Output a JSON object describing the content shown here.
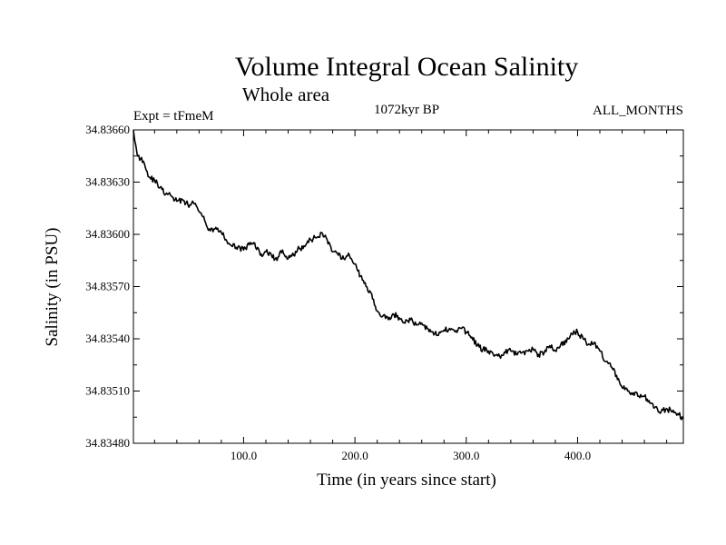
{
  "chart_data": {
    "type": "line",
    "title": "Volume Integral Ocean Salinity",
    "subtitle": "Whole area",
    "left_label": "Expt = tFmeM",
    "center_label": "1072kyr BP",
    "right_label": "ALL_MONTHS",
    "xlabel": "Time (in years since start)",
    "ylabel": "Salinity (in PSU)",
    "xlim": [
      1,
      495
    ],
    "ylim": [
      34.8348,
      34.8366
    ],
    "x_ticks": [
      100,
      200,
      300,
      400
    ],
    "x_tick_labels": [
      "100.0",
      "200.0",
      "300.0",
      "400.0"
    ],
    "y_ticks": [
      34.8348,
      34.8351,
      34.8354,
      34.8357,
      34.836,
      34.8363,
      34.8366
    ],
    "y_tick_labels": [
      "34.83480",
      "34.83510",
      "34.83540",
      "34.83570",
      "34.83600",
      "34.83630",
      "34.83660"
    ],
    "series": [
      {
        "name": "Salinity",
        "x": [
          1,
          5,
          10,
          15,
          20,
          25,
          30,
          35,
          40,
          45,
          50,
          55,
          60,
          65,
          70,
          75,
          80,
          85,
          90,
          95,
          100,
          105,
          110,
          115,
          120,
          125,
          130,
          135,
          140,
          145,
          150,
          155,
          160,
          165,
          170,
          175,
          180,
          185,
          190,
          195,
          200,
          205,
          210,
          215,
          220,
          225,
          230,
          235,
          240,
          245,
          250,
          255,
          260,
          265,
          270,
          275,
          280,
          285,
          290,
          295,
          300,
          305,
          310,
          315,
          320,
          325,
          330,
          335,
          340,
          345,
          350,
          355,
          360,
          365,
          370,
          375,
          380,
          385,
          390,
          395,
          400,
          405,
          410,
          415,
          420,
          425,
          430,
          435,
          440,
          445,
          450,
          455,
          460,
          465,
          470,
          475,
          480,
          485,
          490,
          495
        ],
        "values": [
          34.8366,
          34.83645,
          34.83642,
          34.83633,
          34.83631,
          34.83627,
          34.83623,
          34.83622,
          34.83619,
          34.8362,
          34.83617,
          34.83618,
          34.83613,
          34.83608,
          34.83602,
          34.83604,
          34.83601,
          34.83596,
          34.83593,
          34.83593,
          34.83591,
          34.83594,
          34.83595,
          34.83588,
          34.8359,
          34.83588,
          34.83585,
          34.83591,
          34.83586,
          34.83588,
          34.83592,
          34.83593,
          34.83597,
          34.83598,
          34.83601,
          34.83597,
          34.8359,
          34.83588,
          34.83586,
          34.83588,
          34.83583,
          34.83576,
          34.8357,
          34.83566,
          34.83556,
          34.83553,
          34.83551,
          34.83554,
          34.83552,
          34.83549,
          34.83551,
          34.83548,
          34.83549,
          34.83546,
          34.83544,
          34.83542,
          34.83545,
          34.83546,
          34.83544,
          34.83546,
          34.83544,
          34.83541,
          34.83536,
          34.83534,
          34.83533,
          34.8353,
          34.8353,
          34.83532,
          34.83533,
          34.83531,
          34.83532,
          34.83533,
          34.83534,
          34.83531,
          34.83532,
          34.83536,
          34.83533,
          34.83537,
          34.83538,
          34.83543,
          34.83544,
          34.8354,
          34.83537,
          34.83538,
          34.83533,
          34.83527,
          34.83524,
          34.83519,
          34.83512,
          34.8351,
          34.83509,
          34.83507,
          34.83507,
          34.83503,
          34.83501,
          34.83498,
          34.835,
          34.83498,
          34.83497,
          34.83494
        ]
      }
    ]
  }
}
